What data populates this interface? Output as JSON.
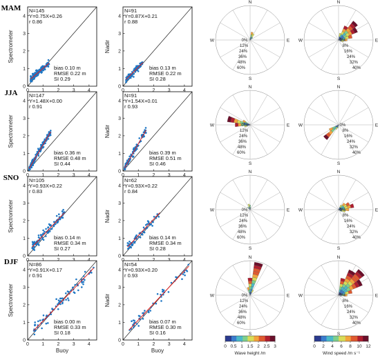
{
  "chart_data": {
    "type": "scatter",
    "x_label": "Buoy",
    "tick_values": [
      0,
      1,
      2,
      3,
      4
    ],
    "seasons": [
      {
        "name": "MAM",
        "spectrometer": {
          "ylabel": "Spectrometer",
          "n": "N=145",
          "fit": "Y=0.75X+0.26",
          "r": "r 0.86",
          "bias": "bias 0.10 m",
          "rmse": "RMSE 0.22 m",
          "si": "SI 0.29",
          "slope": 0.75,
          "intercept": 0.26,
          "xmin": 0.2,
          "xmax": 1.4,
          "npts": 145
        },
        "nadir": {
          "ylabel": "Nadir",
          "n": "N=91",
          "fit": "Y=0.87X+0.21",
          "r": "r 0.88",
          "bias": "bias 0.13 m",
          "rmse": "RMSE 0.22 m",
          "si": "SI 0.28",
          "slope": 0.87,
          "intercept": 0.21,
          "xmin": 0.2,
          "xmax": 1.3,
          "npts": 91
        }
      },
      {
        "name": "JJA",
        "spectrometer": {
          "ylabel": "Spectrometer",
          "n": "N=147",
          "fit": "Y=1.48X+0.00",
          "r": "r 0.91",
          "bias": "bias 0.36 m",
          "rmse": "RMSE 0.48 m",
          "si": "SI 0.44",
          "slope": 1.48,
          "intercept": 0.0,
          "xmin": 0.1,
          "xmax": 1.5,
          "npts": 147
        },
        "nadir": {
          "ylabel": "Nadir",
          "n": "N=91",
          "fit": "Y=1.54X+0.01",
          "r": "r 0.93",
          "bias": "bias 0.39 m",
          "rmse": "RMSE 0.51 m",
          "si": "SI 0.46",
          "slope": 1.54,
          "intercept": 0.01,
          "xmin": 0.1,
          "xmax": 1.5,
          "npts": 91
        }
      },
      {
        "name": "SNO",
        "spectrometer": {
          "ylabel": "Spectrometer",
          "n": "N=105",
          "fit": "Y=0.93X+0.22",
          "r": "r 0.83",
          "bias": "bias 0.14 m",
          "rmse": "RMSE 0.34 m",
          "si": "SI 0.27",
          "slope": 0.93,
          "intercept": 0.22,
          "xmin": 0.3,
          "xmax": 2.4,
          "npts": 105
        },
        "nadir": {
          "ylabel": "Nadir",
          "n": "N=62",
          "fit": "Y=0.93X+0.22",
          "r": "r 0.84",
          "bias": "bias 0.14 m",
          "rmse": "RMSE 0.34 m",
          "si": "SI 0.28",
          "slope": 0.93,
          "intercept": 0.22,
          "xmin": 0.3,
          "xmax": 2.4,
          "npts": 62
        }
      },
      {
        "name": "DJF",
        "spectrometer": {
          "ylabel": "Spectrometer",
          "n": "N=86",
          "fit": "Y=0.91X+0.17",
          "r": "r 0.91",
          "bias": "bias 0.00 m",
          "rmse": "RMSE 0.33 m",
          "si": "SI 0.18",
          "slope": 0.91,
          "intercept": 0.17,
          "xmin": 0.4,
          "xmax": 4.3,
          "npts": 86
        },
        "nadir": {
          "ylabel": "Nadir",
          "n": "N=54",
          "fit": "Y=0.93X+0.20",
          "r": "r 0.93",
          "bias": "bias 0.07 m",
          "rmse": "RMSE 0.30 m",
          "si": "SI 0.16",
          "slope": 0.93,
          "intercept": 0.2,
          "xmin": 0.4,
          "xmax": 4.3,
          "npts": 54
        }
      }
    ],
    "rose": {
      "compass": [
        "N",
        "E",
        "S",
        "W"
      ],
      "wave_ring_labels": [
        "0%",
        "12%",
        "24%",
        "36%",
        "48%",
        "60%"
      ],
      "wind_ring_labels": [
        "0%",
        "8%",
        "16%",
        "24%",
        "32%",
        "40%"
      ],
      "wave_max_pct": 60,
      "wind_max_pct": 40,
      "wave_roses": [
        [
          {
            "dir": 15,
            "pct": 14
          },
          {
            "dir": 30,
            "pct": 12
          },
          {
            "dir": 45,
            "pct": 6
          },
          {
            "dir": 0,
            "pct": 4
          }
        ],
        [
          {
            "dir": 285,
            "pct": 40
          },
          {
            "dir": 270,
            "pct": 26
          },
          {
            "dir": 300,
            "pct": 14
          },
          {
            "dir": 255,
            "pct": 10
          }
        ],
        [
          {
            "dir": 345,
            "pct": 10
          },
          {
            "dir": 0,
            "pct": 8
          },
          {
            "dir": 315,
            "pct": 6
          },
          {
            "dir": 15,
            "pct": 4
          }
        ],
        [
          {
            "dir": 15,
            "pct": 58
          },
          {
            "dir": 0,
            "pct": 30
          },
          {
            "dir": 345,
            "pct": 14
          },
          {
            "dir": 30,
            "pct": 10
          }
        ]
      ],
      "wind_roses": [
        [
          {
            "dir": 45,
            "pct": 28
          },
          {
            "dir": 60,
            "pct": 24
          },
          {
            "dir": 30,
            "pct": 18
          },
          {
            "dir": 75,
            "pct": 16
          },
          {
            "dir": 90,
            "pct": 10
          },
          {
            "dir": 15,
            "pct": 8
          },
          {
            "dir": 105,
            "pct": 6
          }
        ],
        [
          {
            "dir": 225,
            "pct": 22
          },
          {
            "dir": 240,
            "pct": 12
          },
          {
            "dir": 210,
            "pct": 6
          },
          {
            "dir": 195,
            "pct": 4
          }
        ],
        [
          {
            "dir": 75,
            "pct": 18
          },
          {
            "dir": 60,
            "pct": 14
          },
          {
            "dir": 90,
            "pct": 12
          },
          {
            "dir": 45,
            "pct": 10
          },
          {
            "dir": 105,
            "pct": 8
          },
          {
            "dir": 30,
            "pct": 6
          },
          {
            "dir": 120,
            "pct": 4
          }
        ],
        [
          {
            "dir": 45,
            "pct": 38
          },
          {
            "dir": 30,
            "pct": 32
          },
          {
            "dir": 60,
            "pct": 30
          },
          {
            "dir": 15,
            "pct": 20
          },
          {
            "dir": 75,
            "pct": 16
          },
          {
            "dir": 90,
            "pct": 10
          }
        ]
      ]
    },
    "colorbars": {
      "wave": {
        "label": "Wave height /m",
        "ticks": [
          "0",
          "0.5",
          "1",
          "1.5",
          "2",
          "2.5",
          "3"
        ]
      },
      "wind": {
        "label": "Wind speed /m s⁻¹",
        "ticks": [
          "0",
          "2",
          "4",
          "6",
          "8",
          "10",
          "12"
        ]
      }
    },
    "colors": {
      "points": "#1f77c4",
      "fit": "#e02020",
      "one_to_one": "#222222",
      "colormap": [
        "#2b3a8f",
        "#3a7ccc",
        "#4bb9c9",
        "#7fcf8c",
        "#d8dc58",
        "#f3a43d",
        "#e05a30",
        "#b01e2f",
        "#6b0f2a"
      ]
    }
  }
}
